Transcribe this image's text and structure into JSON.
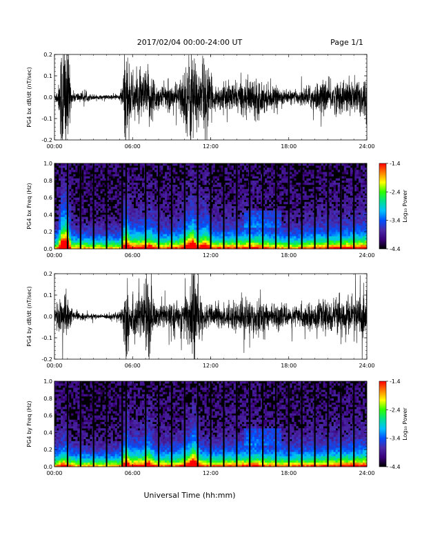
{
  "header": {
    "title": "2017/02/04  00:00-24:00 UT",
    "page": "Page 1/1"
  },
  "footer": {
    "xaxis_label": "Universal Time (hh:mm)"
  },
  "colors": {
    "waveform": "#000000",
    "spectrogram_scale": [
      "#000000",
      "#3a007a",
      "#4a2aa8",
      "#0050ff",
      "#00c0ff",
      "#00e090",
      "#30ff00",
      "#ffff00",
      "#ff8000",
      "#ff0000"
    ]
  },
  "chart_data": [
    {
      "id": "pg4-bx-dbdt",
      "type": "line",
      "ylabel": "PG4 bx dB/dt (nT/sec)",
      "ylim": [
        -0.2,
        0.2
      ],
      "yticks": [
        "0.2",
        "0.1",
        "0.0",
        "-0.1",
        "-0.2"
      ],
      "xlim_hours": [
        0,
        24
      ],
      "xticks": [
        "00:00",
        "06:00",
        "12:00",
        "18:00",
        "24:00"
      ],
      "amplitude_profile_hours": [
        [
          0,
          0.02
        ],
        [
          0.3,
          0.05
        ],
        [
          0.6,
          0.35
        ],
        [
          1.0,
          0.35
        ],
        [
          1.3,
          0.03
        ],
        [
          3.5,
          0.01
        ],
        [
          5.0,
          0.015
        ],
        [
          5.2,
          0.06
        ],
        [
          5.5,
          0.3
        ],
        [
          5.8,
          0.12
        ],
        [
          6.8,
          0.12
        ],
        [
          7.3,
          0.15
        ],
        [
          8.0,
          0.06
        ],
        [
          9.5,
          0.07
        ],
        [
          10.2,
          0.18
        ],
        [
          10.6,
          0.3
        ],
        [
          11.0,
          0.12
        ],
        [
          11.6,
          0.2
        ],
        [
          12.2,
          0.06
        ],
        [
          14.5,
          0.08
        ],
        [
          15.5,
          0.1
        ],
        [
          16.5,
          0.06
        ],
        [
          17.5,
          0.04
        ],
        [
          18.5,
          0.03
        ],
        [
          20.0,
          0.07
        ],
        [
          21.5,
          0.08
        ],
        [
          23.0,
          0.09
        ],
        [
          24.0,
          0.12
        ]
      ]
    },
    {
      "id": "pg4-bx-freq",
      "type": "heatmap",
      "ylabel": "PG4 bx Freq (Hz)",
      "ylim": [
        0.0,
        1.0
      ],
      "yticks": [
        "1.0",
        "0.8",
        "0.6",
        "0.4",
        "0.2",
        "0.0"
      ],
      "xlim_hours": [
        0,
        24
      ],
      "xticks": [
        "00:00",
        "06:00",
        "12:00",
        "18:00",
        "24:00"
      ],
      "colorbar": {
        "label": "Log₁₀ Power",
        "ticks": [
          "-1.4",
          "-2.4",
          "-3.4",
          "-4.4"
        ],
        "range": [
          -4.4,
          -1.4
        ]
      },
      "gap_lines_hours": [
        1.0,
        2.0,
        3.0,
        4.0,
        5.2,
        5.5,
        7.0,
        8.0,
        9.0,
        10.0,
        11.0,
        12.0,
        13.0,
        14.0,
        15.0,
        16.0,
        17.0,
        18.0,
        19.0,
        20.0,
        21.0,
        22.0,
        23.0
      ]
    },
    {
      "id": "pg4-by-dbdt",
      "type": "line",
      "ylabel": "PG4 by dB/dt (nT/sec)",
      "ylim": [
        -0.2,
        0.2
      ],
      "yticks": [
        "0.2",
        "0.1",
        "0.0",
        "-0.1",
        "-0.2"
      ],
      "xlim_hours": [
        0,
        24
      ],
      "xticks": [
        "00:00",
        "06:00",
        "12:00",
        "18:00",
        "24:00"
      ],
      "amplitude_profile_hours": [
        [
          0,
          0.03
        ],
        [
          0.4,
          0.08
        ],
        [
          0.8,
          0.12
        ],
        [
          1.2,
          0.05
        ],
        [
          1.6,
          0.02
        ],
        [
          3.5,
          0.01
        ],
        [
          5.0,
          0.02
        ],
        [
          5.3,
          0.08
        ],
        [
          5.5,
          0.3
        ],
        [
          5.8,
          0.1
        ],
        [
          6.8,
          0.12
        ],
        [
          7.2,
          0.2
        ],
        [
          7.8,
          0.06
        ],
        [
          9.5,
          0.06
        ],
        [
          10.3,
          0.15
        ],
        [
          10.7,
          0.3
        ],
        [
          11.2,
          0.08
        ],
        [
          12.0,
          0.05
        ],
        [
          14.5,
          0.08
        ],
        [
          15.5,
          0.1
        ],
        [
          16.5,
          0.06
        ],
        [
          18.0,
          0.05
        ],
        [
          20.5,
          0.07
        ],
        [
          22.0,
          0.09
        ],
        [
          23.5,
          0.1
        ],
        [
          24.0,
          0.11
        ]
      ]
    },
    {
      "id": "pg4-by-freq",
      "type": "heatmap",
      "ylabel": "PG4 by Freq (Hz)",
      "ylim": [
        0.0,
        1.0
      ],
      "yticks": [
        "1.0",
        "0.8",
        "0.6",
        "0.4",
        "0.2",
        "0.0"
      ],
      "xlim_hours": [
        0,
        24
      ],
      "xticks": [
        "00:00",
        "06:00",
        "12:00",
        "18:00",
        "24:00"
      ],
      "colorbar": {
        "label": "Log₁₀ Power",
        "ticks": [
          "-1.4",
          "-2.4",
          "-3.4",
          "-4.4"
        ],
        "range": [
          -4.4,
          -1.4
        ]
      },
      "gap_lines_hours": [
        1.0,
        2.0,
        3.0,
        4.0,
        5.2,
        5.5,
        7.0,
        8.0,
        9.0,
        10.0,
        11.0,
        12.0,
        13.0,
        14.0,
        15.0,
        16.0,
        17.0,
        18.0,
        19.0,
        20.0,
        21.0,
        22.0,
        23.0
      ]
    }
  ]
}
